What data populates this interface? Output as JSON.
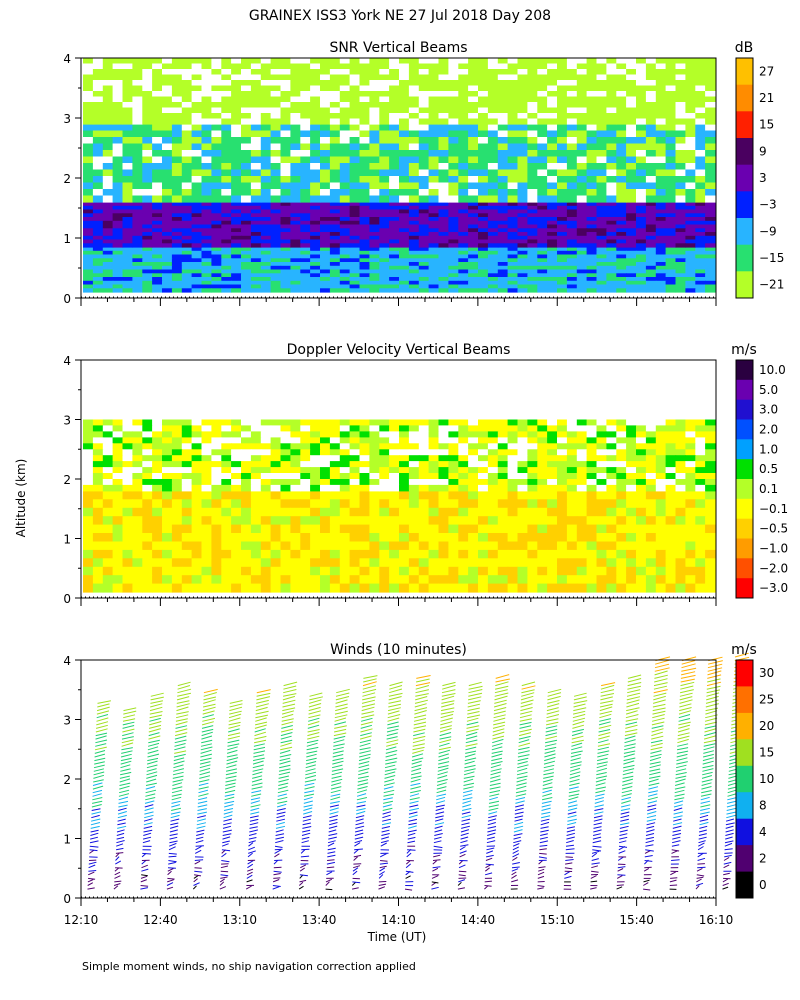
{
  "figure_title": "GRAINEX ISS3 York NE  27 Jul 2018 Day 208",
  "y_axis_label": "Altitude (km)",
  "x_axis_label": "Time (UT)",
  "footnote": "Simple moment winds, no ship navigation correction applied",
  "chart_data": [
    {
      "type": "heatmap",
      "title": "SNR Vertical Beams",
      "ylabel": "Altitude (km)",
      "ylim": [
        0,
        4
      ],
      "yticks": [
        "0",
        "1",
        "2",
        "3",
        "4"
      ],
      "colorbar_unit": "dB",
      "colorbar_labels": [
        "27",
        "21",
        "15",
        "9",
        "3",
        "−3",
        "−9",
        "−15",
        "−21"
      ],
      "colorbar_colors": [
        "#ffc000",
        "#ff8c00",
        "#ff2000",
        "#4a0060",
        "#6a00b0",
        "#0020ff",
        "#28b4ff",
        "#28e070",
        "#b4ff28"
      ],
      "layers": [
        {
          "bottom_km": 0.1,
          "top_km": 0.85,
          "level_db": -9
        },
        {
          "bottom_km": 0.85,
          "top_km": 1.6,
          "level_db": 3
        },
        {
          "bottom_km": 1.6,
          "top_km": 2.9,
          "level_db": -15
        },
        {
          "bottom_km": 2.9,
          "top_km": 4.0,
          "level_db": -21
        }
      ]
    },
    {
      "type": "heatmap",
      "title": "Doppler Velocity Vertical Beams",
      "ylabel": "Altitude (km)",
      "ylim": [
        0,
        4
      ],
      "yticks": [
        "0",
        "1",
        "2",
        "3",
        "4"
      ],
      "colorbar_unit": "m/s",
      "colorbar_labels": [
        "10.0",
        "5.0",
        "3.0",
        "2.0",
        "1.0",
        "0.5",
        "0.1",
        "−0.1",
        "−0.5",
        "−1.0",
        "−2.0",
        "−3.0"
      ],
      "colorbar_colors": [
        "#2a0040",
        "#6a00b0",
        "#2010d0",
        "#0050ff",
        "#00a0ff",
        "#00e000",
        "#b4ff28",
        "#ffff00",
        "#ffd000",
        "#ff9c00",
        "#ff5000",
        "#ff0000"
      ],
      "layers": [
        {
          "bottom_km": 0.1,
          "top_km": 1.8,
          "level_ms": -0.1
        },
        {
          "bottom_km": 1.8,
          "top_km": 3.0,
          "level_ms": 0.1
        }
      ]
    },
    {
      "type": "scatter",
      "title": "Winds (10 minutes)",
      "ylabel": "Altitude (km)",
      "ylim": [
        0,
        4
      ],
      "yticks": [
        "0",
        "1",
        "2",
        "3",
        "4"
      ],
      "xlabel": "Time (UT)",
      "xticks": [
        "12:10",
        "12:40",
        "13:10",
        "13:40",
        "14:10",
        "14:40",
        "15:10",
        "15:40",
        "16:10"
      ],
      "colorbar_unit": "m/s",
      "colorbar_labels": [
        "30",
        "25",
        "20",
        "15",
        "10",
        "8",
        "4",
        "2",
        "0"
      ],
      "colorbar_colors": [
        "#ff0000",
        "#ff7000",
        "#ffb000",
        "#a0e020",
        "#20d070",
        "#10b0f0",
        "#1010e0",
        "#500070",
        "#000000"
      ],
      "profile_times_min": [
        0,
        10,
        20,
        30,
        40,
        50,
        60,
        70,
        80,
        90,
        100,
        110,
        120,
        130,
        140,
        150,
        160,
        170,
        180,
        190,
        200,
        210,
        220,
        230,
        240
      ],
      "profile_top_km": [
        3.3,
        3.2,
        3.4,
        3.6,
        3.5,
        3.3,
        3.5,
        3.6,
        3.4,
        3.5,
        3.7,
        3.6,
        3.7,
        3.6,
        3.6,
        3.7,
        3.6,
        3.5,
        3.4,
        3.6,
        3.7,
        4.0,
        4.0,
        4.0,
        4.1
      ],
      "profile_speed_ms": [
        {
          "alt_km": 0.3,
          "speed": 3
        },
        {
          "alt_km": 1.0,
          "speed": 6
        },
        {
          "alt_km": 2.0,
          "speed": 12
        },
        {
          "alt_km": 3.0,
          "speed": 16
        },
        {
          "alt_km": 3.8,
          "speed": 21
        }
      ]
    }
  ]
}
